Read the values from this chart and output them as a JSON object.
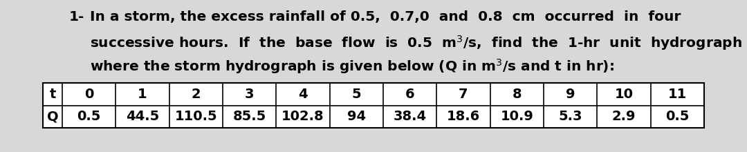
{
  "t_values": [
    "0",
    "1",
    "2",
    "3",
    "4",
    "5",
    "6",
    "7",
    "8",
    "9",
    "10",
    "11"
  ],
  "q_values": [
    "0.5",
    "44.5",
    "110.5",
    "85.5",
    "102.8",
    "94",
    "38.4",
    "18.6",
    "10.9",
    "5.3",
    "2.9",
    "0.5"
  ],
  "bg_color": "#d8d8d8",
  "title_fontsize": 14.5,
  "table_fontsize": 14.0,
  "line1": "In a storm, the excess rainfall of 0.5,  0.7,0  and  0.8  cm  occurred  in  four",
  "line2": "successive hours.  If  the  base  flow  is  0.5  m³/s,  find  the  1-hr  unit  hydrograph",
  "line3": "where the storm hydrograph is given below (Q in m³/s and t in hr):"
}
